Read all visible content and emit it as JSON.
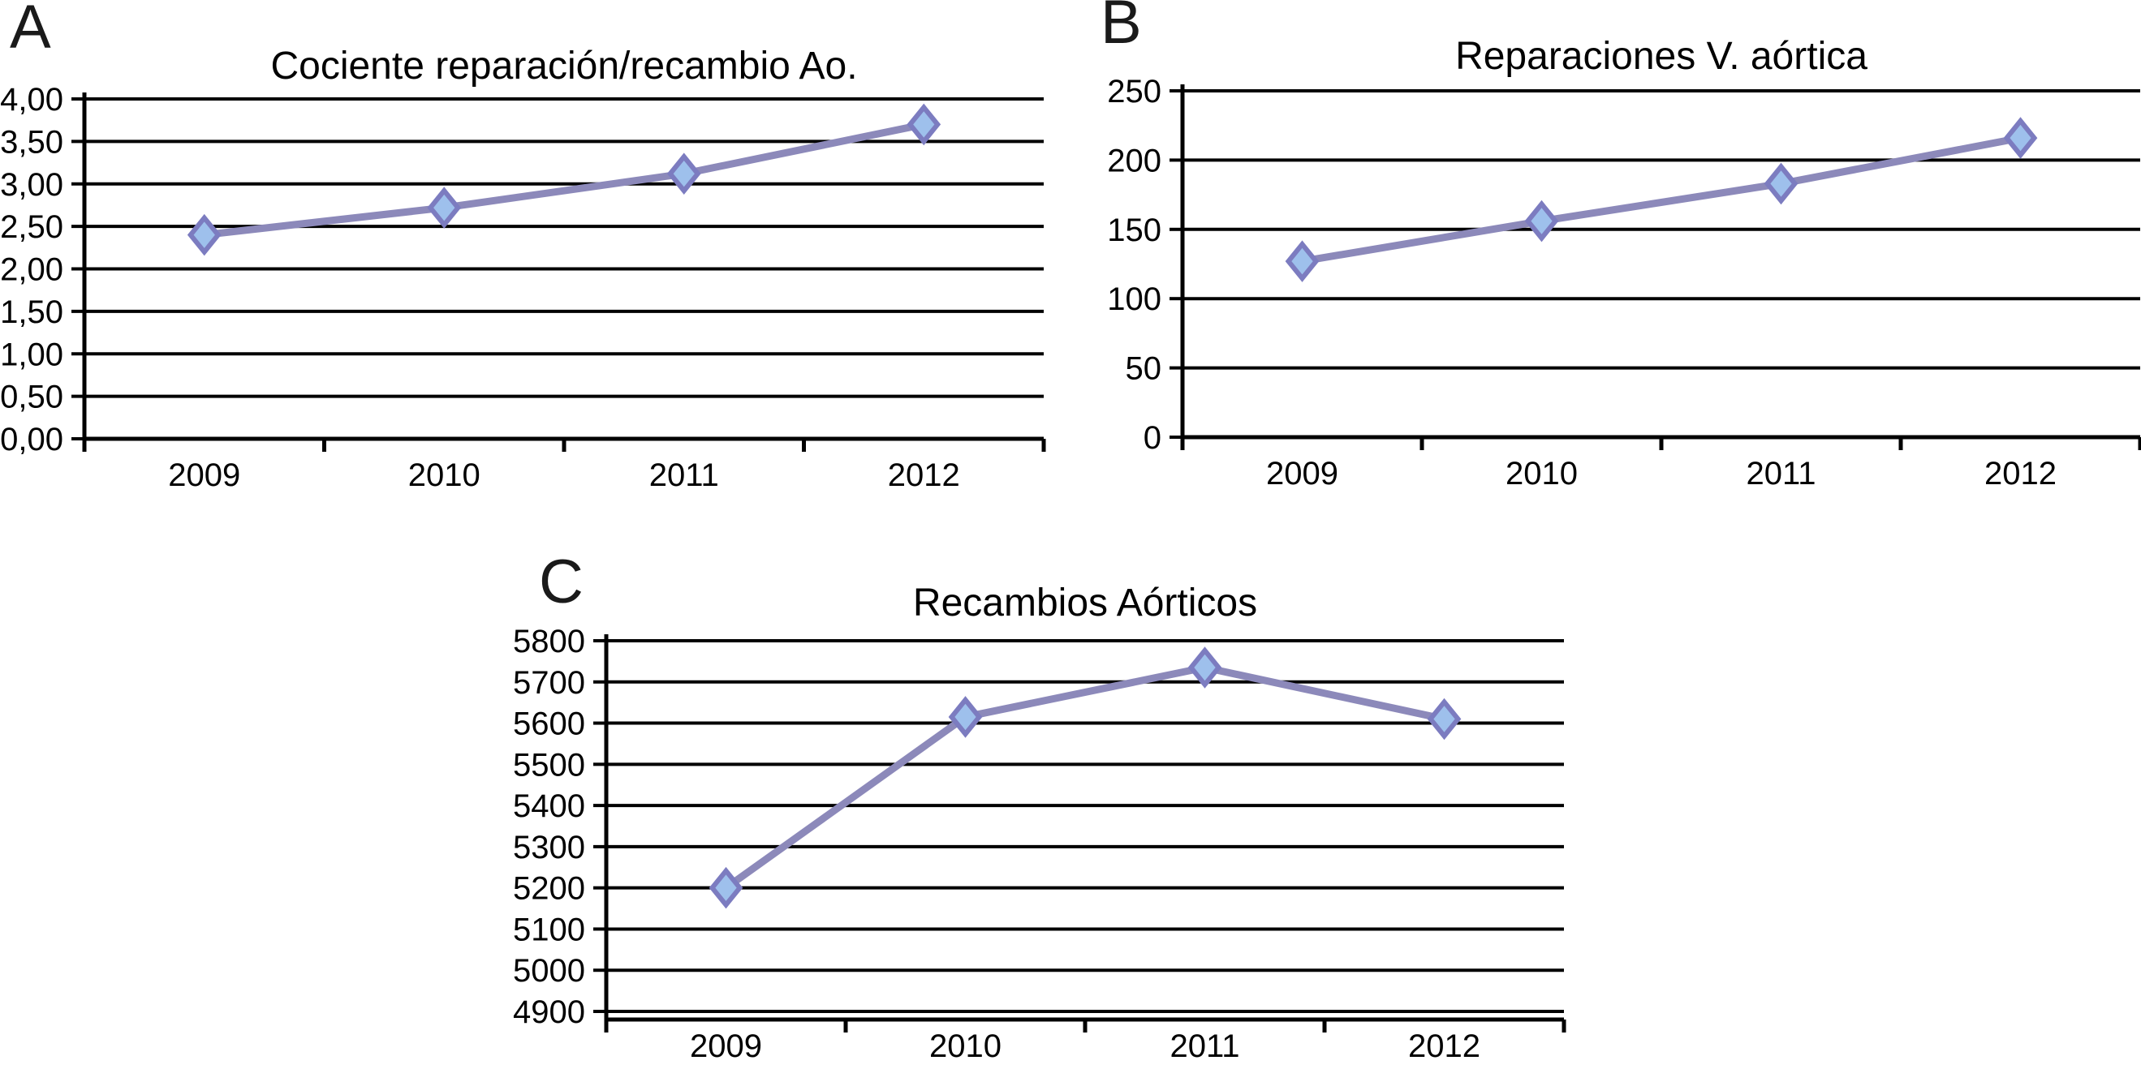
{
  "styles": {
    "background": "#ffffff",
    "axis_color": "#000000",
    "grid_color": "#000000",
    "line_color": "#8C89BA",
    "marker_fill": "#9EC0EC",
    "marker_stroke": "#7C7CC0",
    "text_color": "#000000"
  },
  "chart_data": [
    {
      "panel": "A",
      "type": "line",
      "title": "Cociente reparación/recambio Ao.",
      "categories": [
        "2009",
        "2010",
        "2011",
        "2012"
      ],
      "values": [
        2.4,
        2.72,
        3.12,
        3.7
      ],
      "ylim": [
        0,
        4
      ],
      "ytick_step": 0.5,
      "ytick_labels": [
        "4,00",
        "3,50",
        "3,00",
        "2,50",
        "2,00",
        "1,50",
        "1,00",
        "0,50",
        "0,00"
      ],
      "xlabel": "",
      "ylabel": "",
      "grid": "horizontal",
      "legend": "none"
    },
    {
      "panel": "B",
      "type": "line",
      "title": "Reparaciones V. aórtica",
      "categories": [
        "2009",
        "2010",
        "2011",
        "2012"
      ],
      "values": [
        127,
        156,
        183,
        216
      ],
      "ylim": [
        0,
        250
      ],
      "ytick_step": 50,
      "ytick_labels": [
        "250",
        "200",
        "150",
        "100",
        "50",
        "0"
      ],
      "xlabel": "",
      "ylabel": "",
      "grid": "horizontal",
      "legend": "none"
    },
    {
      "panel": "C",
      "type": "line",
      "title": "Recambios Aórticos",
      "categories": [
        "2009",
        "2010",
        "2011",
        "2012"
      ],
      "values": [
        5200,
        5615,
        5735,
        5610
      ],
      "ylim": [
        4900,
        5800
      ],
      "ytick_step": 100,
      "ytick_labels": [
        "5800",
        "5700",
        "5600",
        "5500",
        "5400",
        "5300",
        "5200",
        "5100",
        "5000",
        "4900"
      ],
      "xlabel": "",
      "ylabel": "",
      "grid": "horizontal",
      "legend": "none"
    }
  ]
}
